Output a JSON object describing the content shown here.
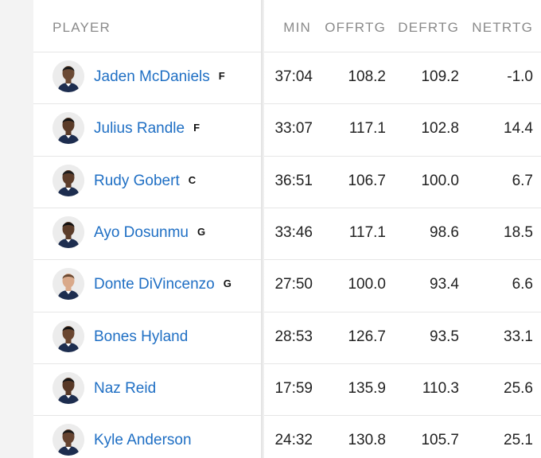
{
  "header": {
    "player": "PLAYER",
    "min": "MIN",
    "offrtg": "OFFRTG",
    "defrtg": "DEFRTG",
    "netrtg": "NETRTG"
  },
  "rows": [
    {
      "name": "Jaden McDaniels",
      "pos": "F",
      "min": "37:04",
      "offrtg": "108.2",
      "defrtg": "109.2",
      "netrtg": "-1.0",
      "skin": "#6b4a35",
      "hair": "#1a1a1a"
    },
    {
      "name": "Julius Randle",
      "pos": "F",
      "min": "33:07",
      "offrtg": "117.1",
      "defrtg": "102.8",
      "netrtg": "14.4",
      "skin": "#5a3b28",
      "hair": "#141414"
    },
    {
      "name": "Rudy Gobert",
      "pos": "C",
      "min": "36:51",
      "offrtg": "106.7",
      "defrtg": "100.0",
      "netrtg": "6.7",
      "skin": "#5d3d2a",
      "hair": "#1c1c1c"
    },
    {
      "name": "Ayo Dosunmu",
      "pos": "G",
      "min": "33:46",
      "offrtg": "117.1",
      "defrtg": "98.6",
      "netrtg": "18.5",
      "skin": "#5b3c29",
      "hair": "#101010"
    },
    {
      "name": "Donte DiVincenzo",
      "pos": "G",
      "min": "27:50",
      "offrtg": "100.0",
      "defrtg": "93.4",
      "netrtg": "6.6",
      "skin": "#d9a98a",
      "hair": "#6a4a34"
    },
    {
      "name": "Bones Hyland",
      "pos": "",
      "min": "28:53",
      "offrtg": "126.7",
      "defrtg": "93.5",
      "netrtg": "33.1",
      "skin": "#6a4630",
      "hair": "#121212"
    },
    {
      "name": "Naz Reid",
      "pos": "",
      "min": "17:59",
      "offrtg": "135.9",
      "defrtg": "110.3",
      "netrtg": "25.6",
      "skin": "#573826",
      "hair": "#161616"
    },
    {
      "name": "Kyle Anderson",
      "pos": "",
      "min": "24:32",
      "offrtg": "130.8",
      "defrtg": "105.7",
      "netrtg": "25.1",
      "skin": "#654330",
      "hair": "#181818"
    }
  ],
  "colors": {
    "link": "#1f6fc4",
    "jersey": "#1d2d4f"
  },
  "icons": {
    "avatar": "player-headshot-icon"
  }
}
